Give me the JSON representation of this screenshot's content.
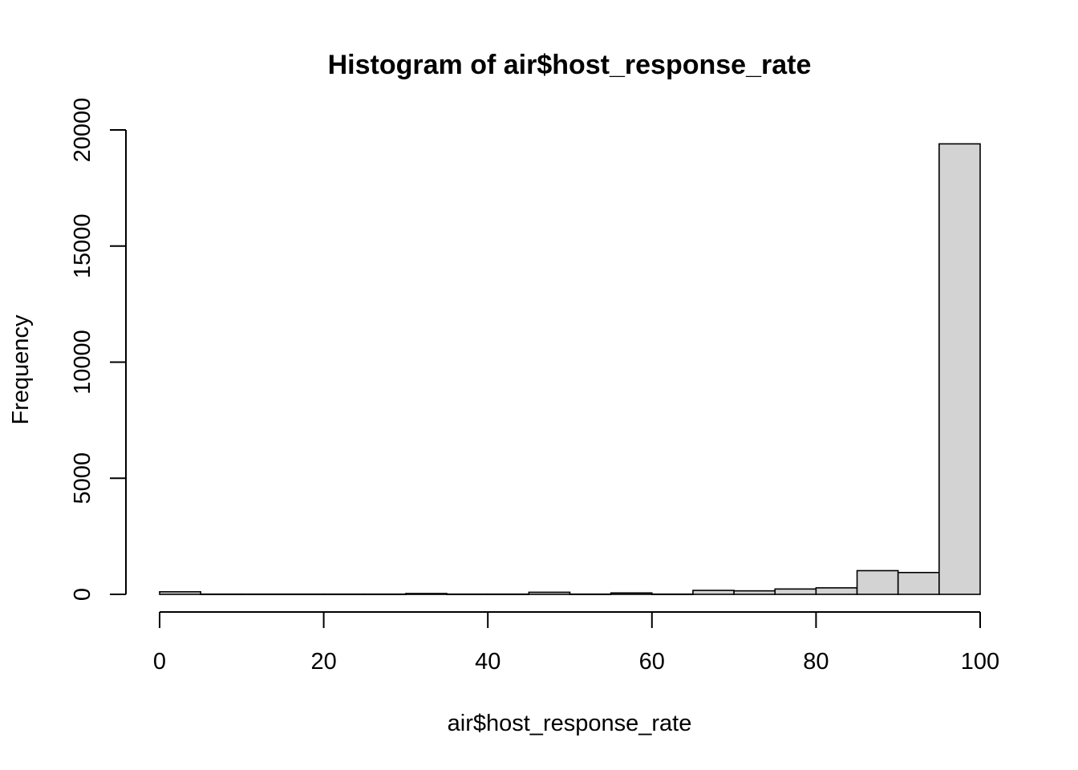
{
  "chart_data": {
    "type": "bar",
    "title": "Histogram of air$host_response_rate",
    "xlabel": "air$host_response_rate",
    "ylabel": "Frequency",
    "bin_edges": [
      0,
      5,
      10,
      15,
      20,
      25,
      30,
      35,
      40,
      45,
      50,
      55,
      60,
      65,
      70,
      75,
      80,
      85,
      90,
      95,
      100
    ],
    "values": [
      110,
      10,
      10,
      10,
      10,
      10,
      35,
      10,
      10,
      90,
      10,
      60,
      10,
      170,
      150,
      230,
      280,
      1020,
      940,
      19400
    ],
    "xlim": [
      0,
      100
    ],
    "ylim": [
      0,
      20000
    ],
    "x_ticks": [
      0,
      20,
      40,
      60,
      80,
      100
    ],
    "y_ticks": [
      0,
      5000,
      10000,
      15000,
      20000
    ],
    "bar_color": "#d3d3d3",
    "grid": false,
    "legend": "none"
  }
}
